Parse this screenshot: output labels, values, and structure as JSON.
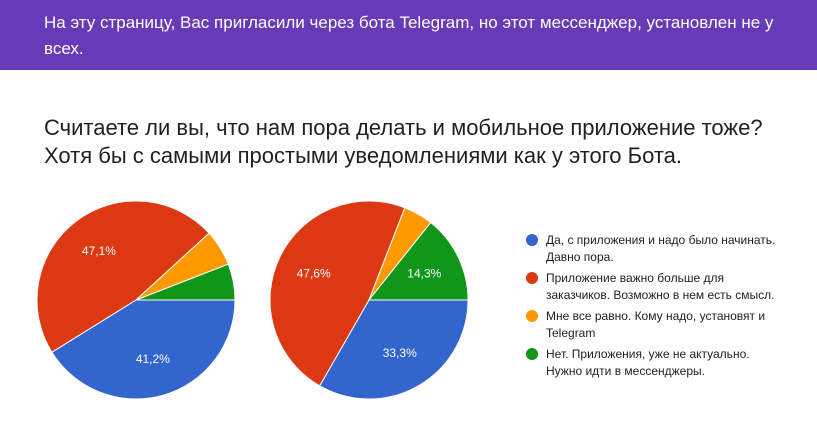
{
  "banner": {
    "text": "На эту страницу, Вас пригласили через бота Telegram, но этот мессенджер, установлен не у всех."
  },
  "question": {
    "line1": "Считаете ли вы, что нам пора делать и мобильное приложение тоже?",
    "line2": "Хотя бы с самыми простыми уведомлениями как у этого Бота."
  },
  "legend": [
    {
      "label": "Да, с приложения и надо было начинать. Давно пора.",
      "color": "#3366cc"
    },
    {
      "label": "Приложение важно больше для заказчиков. Возможно в нем есть смысл.",
      "color": "#dc3912"
    },
    {
      "label": "Мне все равно. Кому надо, установят и Telegram",
      "color": "#ff9900"
    },
    {
      "label": "Нет. Приложения, уже не актуально. Нужно идти в мессенджеры.",
      "color": "#109618"
    }
  ],
  "chart_data": [
    {
      "type": "pie",
      "slices": [
        {
          "category": "Да, с приложения и надо было начинать. Давно пора.",
          "value": 41.2,
          "label": "41,2%",
          "color": "#3366cc"
        },
        {
          "category": "Приложение важно больше для заказчиков. Возможно в нем есть смысл.",
          "value": 47.1,
          "label": "47,1%",
          "color": "#dc3912"
        },
        {
          "category": "Мне все равно. Кому надо, установят и Telegram",
          "value": 5.9,
          "label": "",
          "color": "#ff9900"
        },
        {
          "category": "Нет. Приложения, уже не актуально. Нужно идти в мессенджеры.",
          "value": 5.9,
          "label": "",
          "color": "#109618"
        }
      ]
    },
    {
      "type": "pie",
      "slices": [
        {
          "category": "Да, с приложения и надо было начинать. Давно пора.",
          "value": 33.3,
          "label": "33,3%",
          "color": "#3366cc"
        },
        {
          "category": "Приложение важно больше для заказчиков. Возможно в нем есть смысл.",
          "value": 47.6,
          "label": "47,6%",
          "color": "#dc3912"
        },
        {
          "category": "Мне все равно. Кому надо, установят и Telegram",
          "value": 4.8,
          "label": "",
          "color": "#ff9900"
        },
        {
          "category": "Нет. Приложения, уже не актуально. Нужно идти в мессенджеры.",
          "value": 14.3,
          "label": "14,3%",
          "color": "#109618"
        }
      ]
    }
  ]
}
